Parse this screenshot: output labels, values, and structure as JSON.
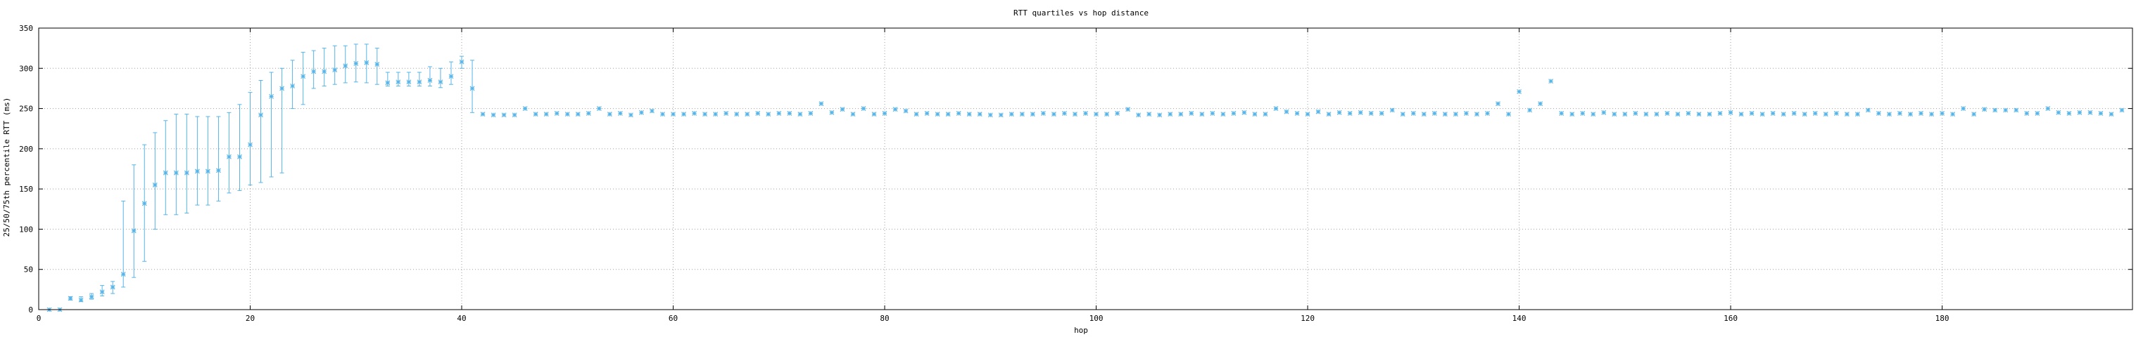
{
  "chart_data": {
    "type": "scatter",
    "title": "RTT quartiles vs hop distance",
    "xlabel": "hop",
    "ylabel": "25/50/75th percentile RTT (ms)",
    "xlim": [
      0,
      198
    ],
    "ylim": [
      0,
      350
    ],
    "xticks": [
      0,
      20,
      40,
      60,
      80,
      100,
      120,
      140,
      160,
      180
    ],
    "yticks": [
      0,
      50,
      100,
      150,
      200,
      250,
      300,
      350
    ],
    "grid": true,
    "legend": "none",
    "colors": {
      "series": "#56b4e9",
      "grid": "#a0a0a0",
      "axis": "#000000"
    },
    "series": [
      {
        "x": [
          1,
          2,
          3,
          4,
          5,
          6,
          7,
          8,
          9,
          10,
          11,
          12,
          13,
          14,
          15,
          16,
          17,
          18,
          19,
          20,
          21,
          22,
          23,
          24,
          25,
          26,
          27,
          28,
          29,
          30,
          31,
          32,
          33,
          34,
          35,
          36,
          37,
          38,
          39,
          40,
          41
        ],
        "median": [
          0,
          0,
          14,
          12,
          16,
          22,
          28,
          44,
          98,
          132,
          155,
          170,
          170,
          170,
          172,
          172,
          173,
          190,
          190,
          205,
          242,
          265,
          275,
          278,
          290,
          296,
          296,
          298,
          303,
          306,
          307,
          305,
          282,
          283,
          283,
          283,
          285,
          283,
          290,
          308,
          275
        ],
        "q1": [
          0,
          0,
          12,
          10,
          13,
          17,
          20,
          28,
          40,
          60,
          100,
          118,
          118,
          120,
          130,
          130,
          135,
          145,
          148,
          155,
          158,
          165,
          170,
          250,
          255,
          275,
          278,
          280,
          282,
          283,
          282,
          280,
          278,
          278,
          278,
          278,
          278,
          276,
          280,
          300,
          245
        ],
        "q3": [
          0,
          0,
          16,
          16,
          20,
          30,
          35,
          135,
          180,
          205,
          220,
          235,
          243,
          243,
          240,
          240,
          240,
          245,
          255,
          270,
          285,
          295,
          300,
          310,
          320,
          322,
          325,
          328,
          328,
          330,
          330,
          325,
          295,
          295,
          295,
          295,
          302,
          300,
          308,
          315,
          310
        ]
      },
      {
        "x": [
          42,
          43,
          44,
          45,
          46,
          47,
          48,
          49,
          50,
          51,
          52,
          53,
          54,
          55,
          56,
          57,
          58,
          59,
          60,
          61,
          62,
          63,
          64,
          65,
          66,
          67,
          68,
          69,
          70,
          71,
          72,
          73,
          74,
          75,
          76,
          77,
          78,
          79,
          80,
          81,
          82,
          83,
          84,
          85,
          86,
          87,
          88,
          89,
          90,
          91,
          92,
          93,
          94,
          95,
          96,
          97,
          98,
          99,
          100,
          101,
          102,
          103,
          104,
          105,
          106,
          107,
          108,
          109,
          110,
          111,
          112,
          113,
          114,
          115,
          116,
          117,
          118,
          119,
          120,
          121,
          122,
          123,
          124,
          125,
          126,
          127,
          128,
          129,
          130,
          131,
          132,
          133,
          134,
          135,
          136,
          137,
          138,
          139,
          140,
          141,
          142,
          143,
          144,
          145,
          146,
          147,
          148,
          149,
          150,
          151,
          152,
          153,
          154,
          155,
          156,
          157,
          158,
          159,
          160,
          161,
          162,
          163,
          164,
          165,
          166,
          167,
          168,
          169,
          170,
          171,
          172,
          173,
          174,
          175,
          176,
          177,
          178,
          179,
          180,
          181,
          182,
          183,
          184,
          185,
          186,
          187,
          188,
          189,
          190,
          191,
          192,
          193,
          194,
          195,
          196,
          197
        ],
        "median": [
          243,
          242,
          242,
          242,
          250,
          243,
          243,
          244,
          243,
          243,
          244,
          250,
          243,
          244,
          242,
          245,
          247,
          243,
          243,
          243,
          244,
          243,
          243,
          244,
          243,
          243,
          244,
          243,
          244,
          244,
          243,
          244,
          256,
          245,
          249,
          243,
          250,
          243,
          244,
          249,
          247,
          243,
          244,
          243,
          243,
          244,
          243,
          243,
          242,
          242,
          243,
          243,
          243,
          244,
          243,
          244,
          243,
          244,
          243,
          243,
          244,
          249,
          242,
          243,
          242,
          243,
          243,
          244,
          243,
          244,
          243,
          244,
          245,
          243,
          243,
          250,
          246,
          244,
          243,
          246,
          243,
          245,
          244,
          245,
          244,
          244,
          248,
          243,
          244,
          243,
          244,
          243,
          243,
          244,
          243,
          244,
          256,
          243,
          271,
          248,
          256,
          284,
          244,
          243,
          244,
          243,
          245,
          243,
          243,
          244,
          243,
          243,
          244,
          243,
          244,
          243,
          243,
          244,
          245,
          243,
          244,
          243,
          244,
          243,
          244,
          243,
          244,
          243,
          244,
          243,
          243,
          248,
          244,
          243,
          244,
          243,
          244,
          243,
          244,
          243,
          250,
          243,
          249,
          248,
          248,
          248,
          244,
          244,
          250,
          245,
          244,
          245,
          245,
          244,
          243,
          248
        ]
      }
    ]
  }
}
